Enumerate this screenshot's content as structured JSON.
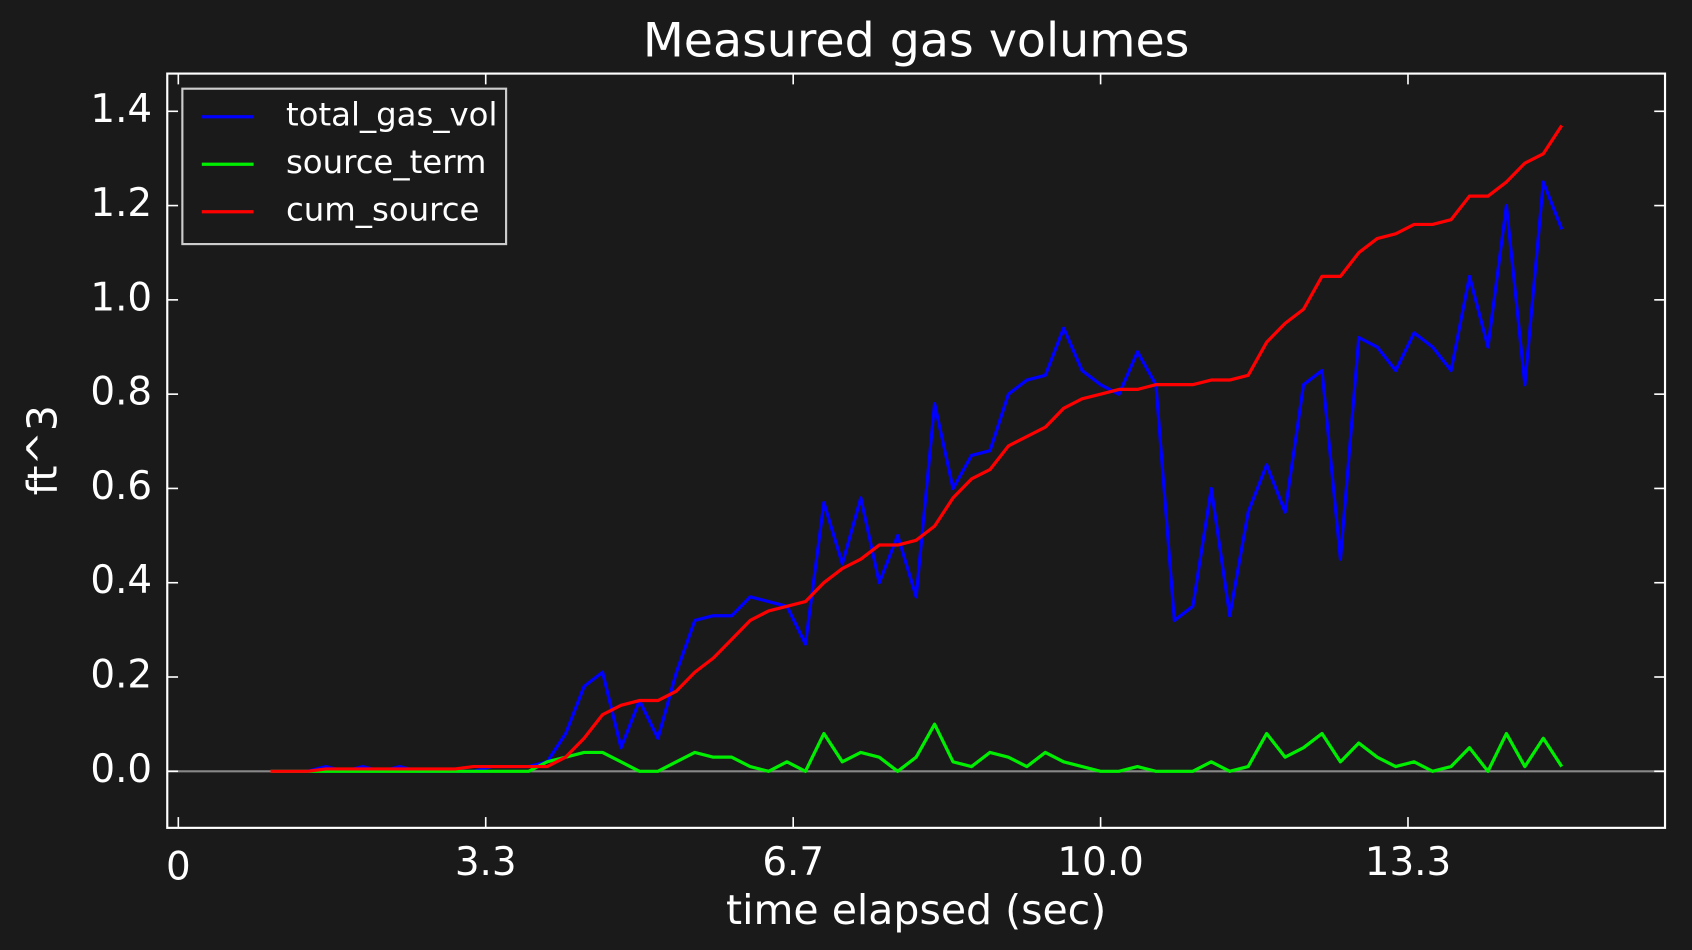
{
  "chart_data": {
    "type": "line",
    "title": "Measured gas volumes",
    "xlabel": "time elapsed (sec)",
    "ylabel": "ft^3",
    "x": [
      1.0,
      1.2,
      1.4,
      1.6,
      1.8,
      2.0,
      2.2,
      2.4,
      2.6,
      2.8,
      3.0,
      3.2,
      3.4,
      3.6,
      3.8,
      4.0,
      4.2,
      4.4,
      4.6,
      4.8,
      5.0,
      5.2,
      5.4,
      5.6,
      5.8,
      6.0,
      6.2,
      6.4,
      6.6,
      6.8,
      7.0,
      7.2,
      7.4,
      7.6,
      7.8,
      8.0,
      8.2,
      8.4,
      8.6,
      8.8,
      9.0,
      9.2,
      9.4,
      9.6,
      9.8,
      10.0,
      10.2,
      10.4,
      10.6,
      10.8,
      11.0,
      11.2,
      11.4,
      11.6,
      11.8,
      12.0,
      12.2,
      12.4,
      12.6,
      12.8,
      13.0,
      13.2,
      13.4,
      13.6,
      13.8,
      14.0,
      14.2,
      14.4,
      14.6,
      14.8,
      15.0
    ],
    "series": [
      {
        "name": "total_gas_vol",
        "color": "#0000ff",
        "values": [
          0,
          0,
          0,
          0.01,
          0,
          0.01,
          0,
          0.01,
          0,
          0,
          0,
          0,
          0.01,
          0.01,
          0.01,
          0.02,
          0.08,
          0.18,
          0.21,
          0.05,
          0.15,
          0.07,
          0.21,
          0.32,
          0.33,
          0.33,
          0.37,
          0.36,
          0.35,
          0.27,
          0.57,
          0.44,
          0.58,
          0.4,
          0.5,
          0.37,
          0.78,
          0.6,
          0.67,
          0.68,
          0.8,
          0.83,
          0.84,
          0.94,
          0.85,
          0.82,
          0.8,
          0.89,
          0.82,
          0.32,
          0.35,
          0.6,
          0.33,
          0.55,
          0.65,
          0.55,
          0.82,
          0.85,
          0.45,
          0.92,
          0.9,
          0.85,
          0.93,
          0.9,
          0.85,
          1.05,
          0.9,
          1.2,
          0.82,
          1.25,
          1.15
        ]
      },
      {
        "name": "source_term",
        "color": "#00ee00",
        "values": [
          0,
          0,
          0,
          0,
          0,
          0,
          0,
          0,
          0,
          0,
          0,
          0,
          0,
          0,
          0,
          0.02,
          0.03,
          0.04,
          0.04,
          0.02,
          0,
          0,
          0.02,
          0.04,
          0.03,
          0.03,
          0.01,
          0,
          0.02,
          0,
          0.08,
          0.02,
          0.04,
          0.03,
          0,
          0.03,
          0.1,
          0.02,
          0.01,
          0.04,
          0.03,
          0.01,
          0.04,
          0.02,
          0.01,
          0,
          0,
          0.01,
          0,
          0,
          0,
          0.02,
          0,
          0.01,
          0.08,
          0.03,
          0.05,
          0.08,
          0.02,
          0.06,
          0.03,
          0.01,
          0.02,
          0,
          0.01,
          0.05,
          0,
          0.08,
          0.01,
          0.07,
          0.01
        ]
      },
      {
        "name": "cum_source",
        "color": "#ff0000",
        "values": [
          0,
          0,
          0,
          0.005,
          0.005,
          0.005,
          0.005,
          0.005,
          0.005,
          0.005,
          0.005,
          0.01,
          0.01,
          0.01,
          0.01,
          0.01,
          0.03,
          0.07,
          0.12,
          0.14,
          0.15,
          0.15,
          0.17,
          0.21,
          0.24,
          0.28,
          0.32,
          0.34,
          0.35,
          0.36,
          0.4,
          0.43,
          0.45,
          0.48,
          0.48,
          0.49,
          0.52,
          0.58,
          0.62,
          0.64,
          0.69,
          0.71,
          0.73,
          0.77,
          0.79,
          0.8,
          0.81,
          0.81,
          0.82,
          0.82,
          0.82,
          0.83,
          0.83,
          0.84,
          0.91,
          0.95,
          0.98,
          1.05,
          1.05,
          1.1,
          1.13,
          1.14,
          1.16,
          1.16,
          1.17,
          1.22,
          1.22,
          1.25,
          1.29,
          1.31,
          1.37
        ]
      }
    ],
    "xlim": [
      -0.12,
      16.12
    ],
    "xticks": [
      0,
      {
        "value": 3.333,
        "label": "3.3"
      },
      {
        "value": 6.667,
        "label": "6.7"
      },
      {
        "value": 10,
        "label": "10.0"
      },
      {
        "value": 13.333,
        "label": "13.3"
      }
    ],
    "ylim": [
      -0.12,
      1.48
    ],
    "yticks": [
      {
        "value": 0,
        "label": "0.0"
      },
      0.2,
      0.4,
      0.6,
      0.8,
      {
        "value": 1,
        "label": "1.0"
      },
      1.2,
      1.4
    ],
    "legend": "upper left",
    "zero_line": true
  }
}
